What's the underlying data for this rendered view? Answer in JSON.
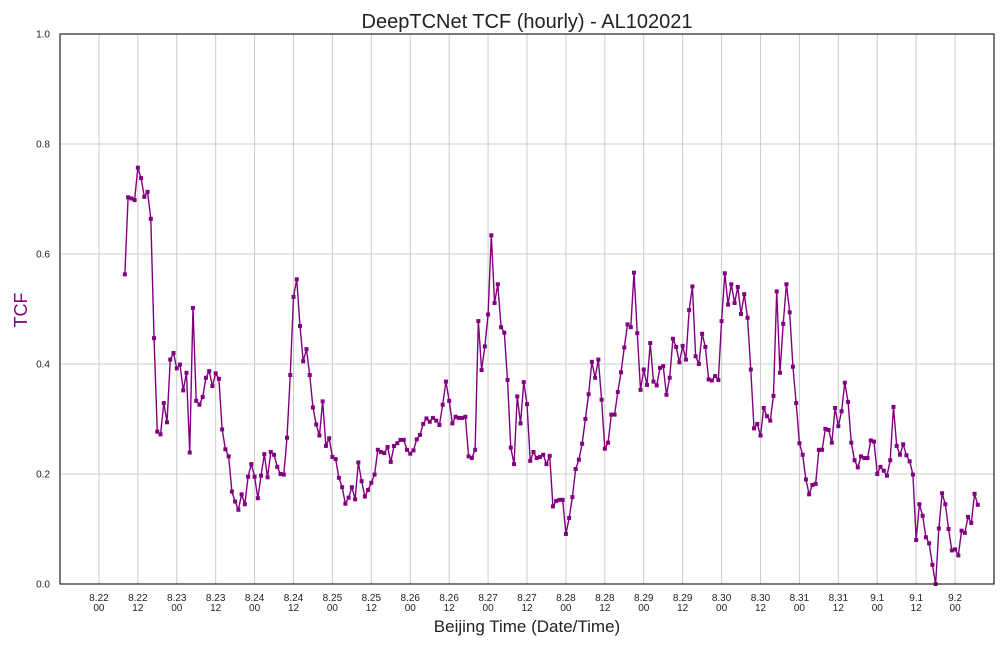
{
  "chart_data": {
    "type": "line",
    "title": "DeepTCNet TCF (hourly) - AL102021",
    "xlabel": "Beijing Time (Date/Time)",
    "ylabel": "TCF",
    "ylim": [
      0,
      1.0
    ],
    "yticks": [
      "0.0",
      "0.2",
      "0.4",
      "0.6",
      "0.8",
      "1.0"
    ],
    "xlim_hours": [
      -12,
      276
    ],
    "xtick_labels": [
      [
        "8.22",
        "00"
      ],
      [
        "8.22",
        "12"
      ],
      [
        "8.23",
        "00"
      ],
      [
        "8.23",
        "12"
      ],
      [
        "8.24",
        "00"
      ],
      [
        "8.24",
        "12"
      ],
      [
        "8.25",
        "00"
      ],
      [
        "8.25",
        "12"
      ],
      [
        "8.26",
        "00"
      ],
      [
        "8.26",
        "12"
      ],
      [
        "8.27",
        "00"
      ],
      [
        "8.27",
        "12"
      ],
      [
        "8.28",
        "00"
      ],
      [
        "8.28",
        "12"
      ],
      [
        "8.29",
        "00"
      ],
      [
        "8.29",
        "12"
      ],
      [
        "8.30",
        "00"
      ],
      [
        "8.30",
        "12"
      ],
      [
        "8.31",
        "00"
      ],
      [
        "8.31",
        "12"
      ],
      [
        "9.1",
        "00"
      ],
      [
        "9.1",
        "12"
      ],
      [
        "9.2",
        "00"
      ]
    ],
    "grid": true,
    "legend": "none",
    "color": "#800080",
    "series": [
      {
        "x_start": "8.22 08:00",
        "interval_hours": 1,
        "values": [
          0.563,
          0.703,
          0.701,
          0.698,
          0.757,
          0.738,
          0.704,
          0.713,
          0.664,
          0.447,
          0.277,
          0.272,
          0.329,
          0.294,
          0.408,
          0.42,
          0.392,
          0.399,
          0.352,
          0.384,
          0.239,
          0.502,
          0.333,
          0.326,
          0.34,
          0.375,
          0.387,
          0.36,
          0.383,
          0.373,
          0.281,
          0.245,
          0.232,
          0.168,
          0.15,
          0.135,
          0.163,
          0.145,
          0.195,
          0.218,
          0.195,
          0.156,
          0.197,
          0.236,
          0.194,
          0.24,
          0.235,
          0.213,
          0.2,
          0.199,
          0.266,
          0.38,
          0.522,
          0.554,
          0.469,
          0.405,
          0.427,
          0.38,
          0.321,
          0.29,
          0.27,
          0.332,
          0.251,
          0.265,
          0.231,
          0.227,
          0.193,
          0.176,
          0.146,
          0.157,
          0.176,
          0.154,
          0.221,
          0.187,
          0.159,
          0.171,
          0.184,
          0.199,
          0.244,
          0.24,
          0.238,
          0.249,
          0.222,
          0.251,
          0.256,
          0.262,
          0.262,
          0.244,
          0.237,
          0.243,
          0.263,
          0.271,
          0.291,
          0.301,
          0.295,
          0.302,
          0.297,
          0.289,
          0.326,
          0.368,
          0.333,
          0.292,
          0.304,
          0.302,
          0.302,
          0.304,
          0.232,
          0.229,
          0.244,
          0.478,
          0.389,
          0.432,
          0.49,
          0.634,
          0.511,
          0.545,
          0.467,
          0.457,
          0.371,
          0.248,
          0.218,
          0.341,
          0.292,
          0.367,
          0.327,
          0.224,
          0.24,
          0.229,
          0.231,
          0.235,
          0.218,
          0.233,
          0.141,
          0.151,
          0.153,
          0.153,
          0.091,
          0.12,
          0.158,
          0.209,
          0.226,
          0.255,
          0.3,
          0.345,
          0.404,
          0.375,
          0.408,
          0.335,
          0.246,
          0.257,
          0.308,
          0.308,
          0.349,
          0.385,
          0.43,
          0.472,
          0.467,
          0.566,
          0.456,
          0.353,
          0.39,
          0.362,
          0.438,
          0.368,
          0.361,
          0.393,
          0.396,
          0.344,
          0.375,
          0.446,
          0.431,
          0.403,
          0.433,
          0.408,
          0.498,
          0.541,
          0.414,
          0.4,
          0.455,
          0.431,
          0.372,
          0.37,
          0.378,
          0.371,
          0.478,
          0.565,
          0.508,
          0.545,
          0.511,
          0.54,
          0.491,
          0.527,
          0.484,
          0.39,
          0.283,
          0.291,
          0.27,
          0.32,
          0.305,
          0.297,
          0.342,
          0.532,
          0.384,
          0.473,
          0.545,
          0.494,
          0.395,
          0.329,
          0.256,
          0.235,
          0.19,
          0.163,
          0.18,
          0.182,
          0.244,
          0.244,
          0.282,
          0.28,
          0.257,
          0.32,
          0.287,
          0.314,
          0.366,
          0.331,
          0.257,
          0.225,
          0.212,
          0.232,
          0.229,
          0.229,
          0.261,
          0.259,
          0.2,
          0.213,
          0.206,
          0.197,
          0.225,
          0.322,
          0.251,
          0.235,
          0.254,
          0.234,
          0.223,
          0.199,
          0.08,
          0.145,
          0.124,
          0.085,
          0.074,
          0.035,
          0.0,
          0.101,
          0.165,
          0.145,
          0.1,
          0.061,
          0.063,
          0.052,
          0.097,
          0.093,
          0.122,
          0.111,
          0.164,
          0.144
        ]
      }
    ]
  }
}
